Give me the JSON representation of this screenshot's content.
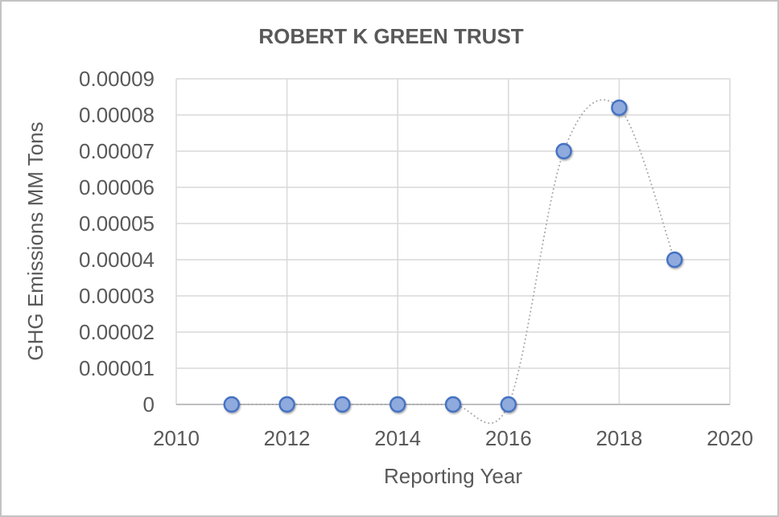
{
  "window": {
    "background": "#ffffff",
    "border_color": "#c3c3c3"
  },
  "chart_data": {
    "type": "scatter",
    "subtype": "smooth-dotted-line-with-markers",
    "title": "ROBERT K GREEN TRUST",
    "xlabel": "Reporting Year",
    "ylabel": "GHG Emissions MM Tons",
    "x": [
      2011,
      2012,
      2013,
      2014,
      2015,
      2016,
      2017,
      2018,
      2019
    ],
    "y": [
      0,
      0,
      0,
      0,
      0,
      0,
      7e-05,
      8.2e-05,
      4e-05
    ],
    "xlim": [
      2010,
      2020
    ],
    "ylim": [
      0,
      9e-05
    ],
    "xticks": [
      2010,
      2012,
      2014,
      2016,
      2018,
      2020
    ],
    "ytick_values": [
      0,
      1e-05,
      2e-05,
      3e-05,
      4e-05,
      5e-05,
      6e-05,
      7e-05,
      8e-05,
      9e-05
    ],
    "ytick_labels": [
      "0",
      "0.00001",
      "0.00002",
      "0.00003",
      "0.00004",
      "0.00005",
      "0.00006",
      "0.00007",
      "0.00008",
      "0.00009"
    ],
    "grid": true,
    "legend": false,
    "colors": {
      "marker_fill": "#8faadc",
      "marker_stroke": "#4472c4",
      "line": "#a6a6a6",
      "grid": "#d9d9d9",
      "axis": "#bfbfbf",
      "text": "#595959"
    }
  }
}
